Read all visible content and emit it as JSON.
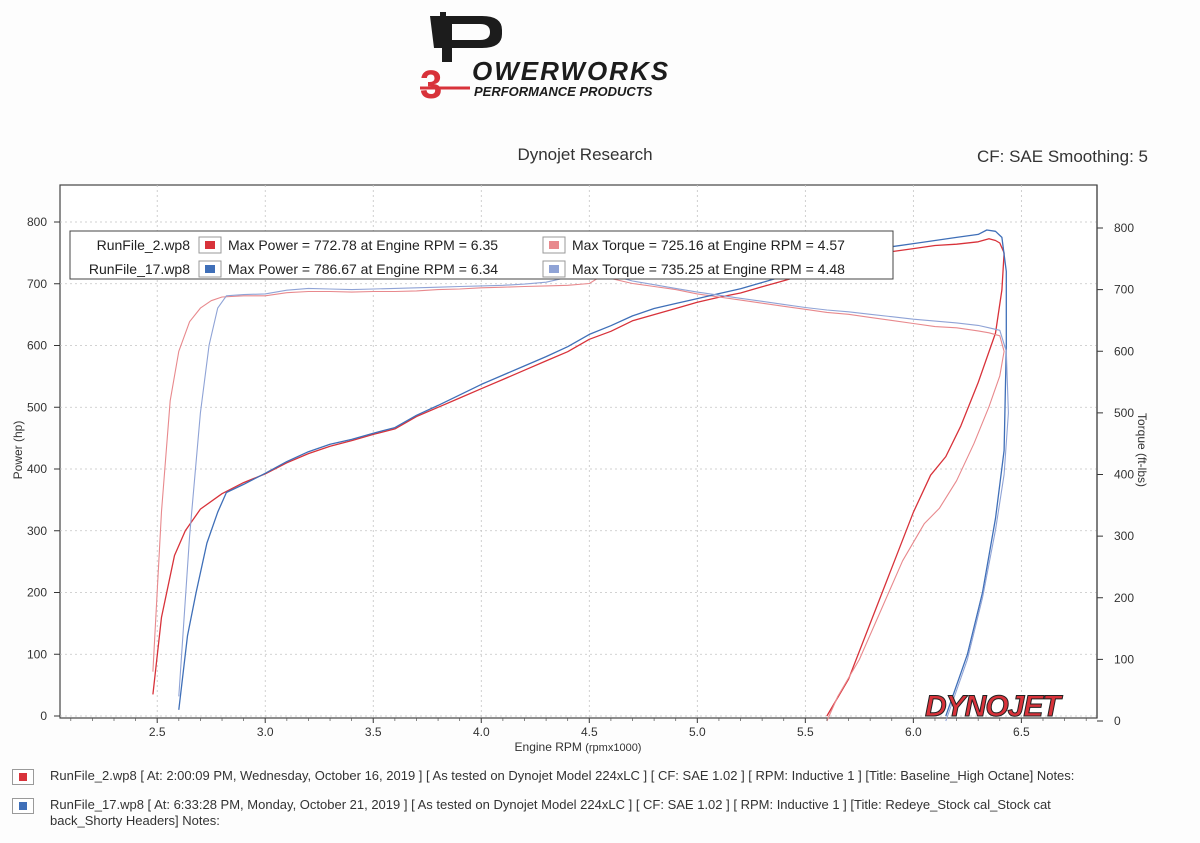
{
  "logo": {
    "brand_word": "OWERWORKS",
    "brand_tagline": "PERFORMANCE PRODUCTS",
    "brand_mark_letter": "P",
    "brand_mark_number": "3",
    "colors": {
      "dark": "#1c1c1c",
      "red": "#d8323a"
    }
  },
  "header": {
    "title": "Dynojet Research",
    "cf_text": "CF: SAE Smoothing: 5"
  },
  "chart_data": {
    "type": "line",
    "xlabel": "Engine RPM",
    "xlabel_unit": "(rpmx1000)",
    "ylabel_left": "Power (hp)",
    "ylabel_right": "Torque (ft-lbs)",
    "xlim": [
      2.05,
      6.85
    ],
    "ylim_left": [
      0,
      800
    ],
    "ylim_right": [
      0,
      800
    ],
    "x_ticks": [
      "2.5",
      "3.0",
      "3.5",
      "4.0",
      "4.5",
      "5.0",
      "5.5",
      "6.0",
      "6.5"
    ],
    "y_ticks_left": [
      "0",
      "100",
      "200",
      "300",
      "400",
      "500",
      "600",
      "700",
      "800"
    ],
    "y_ticks_right": [
      "0",
      "100",
      "200",
      "300",
      "400",
      "500",
      "600",
      "700",
      "800"
    ],
    "grid": true,
    "watermark": "DYNOJET",
    "legend": {
      "placement": "top-left",
      "rows": [
        {
          "file": "RunFile_2.wp8",
          "power_text": "Max Power = 772.78 at Engine RPM = 6.35",
          "torque_text": "Max Torque = 725.16 at Engine RPM = 4.57",
          "power_color": "#d8323a",
          "torque_color": "#e8898d"
        },
        {
          "file": "RunFile_17.wp8",
          "power_text": "Max Power = 786.67 at Engine RPM = 6.34",
          "torque_text": "Max Torque = 735.25 at Engine RPM = 4.48",
          "power_color": "#3f6fb8",
          "torque_color": "#8fa3d6"
        }
      ]
    },
    "series": [
      {
        "name": "RunFile_2.wp8",
        "measure": "power",
        "axis": "left",
        "color": "#d8323a",
        "points": [
          [
            2.48,
            35
          ],
          [
            2.52,
            160
          ],
          [
            2.58,
            260
          ],
          [
            2.63,
            300
          ],
          [
            2.7,
            335
          ],
          [
            2.8,
            360
          ],
          [
            2.9,
            378
          ],
          [
            3.0,
            392
          ],
          [
            3.1,
            410
          ],
          [
            3.2,
            425
          ],
          [
            3.3,
            437
          ],
          [
            3.4,
            446
          ],
          [
            3.5,
            456
          ],
          [
            3.6,
            465
          ],
          [
            3.7,
            485
          ],
          [
            3.8,
            500
          ],
          [
            3.9,
            515
          ],
          [
            4.0,
            530
          ],
          [
            4.1,
            545
          ],
          [
            4.2,
            560
          ],
          [
            4.3,
            575
          ],
          [
            4.4,
            590
          ],
          [
            4.5,
            610
          ],
          [
            4.6,
            623
          ],
          [
            4.7,
            640
          ],
          [
            4.8,
            650
          ],
          [
            4.9,
            660
          ],
          [
            5.0,
            670
          ],
          [
            5.1,
            678
          ],
          [
            5.2,
            685
          ],
          [
            5.3,
            695
          ],
          [
            5.4,
            705
          ],
          [
            5.5,
            715
          ],
          [
            5.6,
            725
          ],
          [
            5.7,
            735
          ],
          [
            5.8,
            745
          ],
          [
            5.9,
            752
          ],
          [
            6.0,
            757
          ],
          [
            6.1,
            762
          ],
          [
            6.2,
            764
          ],
          [
            6.3,
            768
          ],
          [
            6.35,
            773
          ],
          [
            6.38,
            770
          ],
          [
            6.4,
            766
          ],
          [
            6.42,
            750
          ],
          [
            6.41,
            690
          ],
          [
            6.38,
            620
          ],
          [
            6.3,
            540
          ],
          [
            6.22,
            470
          ],
          [
            6.15,
            420
          ],
          [
            6.08,
            390
          ],
          [
            6.0,
            330
          ],
          [
            5.9,
            240
          ],
          [
            5.8,
            150
          ],
          [
            5.7,
            60
          ],
          [
            5.6,
            0
          ]
        ]
      },
      {
        "name": "RunFile_2.wp8",
        "measure": "torque",
        "axis": "right",
        "color": "#e8898d",
        "points": [
          [
            2.48,
            80
          ],
          [
            2.52,
            340
          ],
          [
            2.56,
            520
          ],
          [
            2.6,
            600
          ],
          [
            2.65,
            648
          ],
          [
            2.7,
            670
          ],
          [
            2.75,
            682
          ],
          [
            2.8,
            688
          ],
          [
            2.9,
            690
          ],
          [
            3.0,
            690
          ],
          [
            3.1,
            695
          ],
          [
            3.2,
            697
          ],
          [
            3.3,
            697
          ],
          [
            3.4,
            696
          ],
          [
            3.5,
            697
          ],
          [
            3.6,
            697
          ],
          [
            3.7,
            698
          ],
          [
            3.8,
            700
          ],
          [
            3.9,
            701
          ],
          [
            4.0,
            703
          ],
          [
            4.1,
            704
          ],
          [
            4.2,
            705
          ],
          [
            4.3,
            706
          ],
          [
            4.4,
            707
          ],
          [
            4.5,
            710
          ],
          [
            4.57,
            725
          ],
          [
            4.6,
            718
          ],
          [
            4.7,
            710
          ],
          [
            4.8,
            705
          ],
          [
            4.9,
            700
          ],
          [
            5.0,
            693
          ],
          [
            5.1,
            688
          ],
          [
            5.2,
            683
          ],
          [
            5.3,
            678
          ],
          [
            5.4,
            673
          ],
          [
            5.5,
            668
          ],
          [
            5.6,
            663
          ],
          [
            5.7,
            660
          ],
          [
            5.8,
            655
          ],
          [
            5.9,
            650
          ],
          [
            6.0,
            645
          ],
          [
            6.1,
            640
          ],
          [
            6.2,
            638
          ],
          [
            6.3,
            633
          ],
          [
            6.35,
            630
          ],
          [
            6.4,
            625
          ],
          [
            6.42,
            600
          ],
          [
            6.4,
            560
          ],
          [
            6.35,
            510
          ],
          [
            6.28,
            450
          ],
          [
            6.2,
            390
          ],
          [
            6.12,
            345
          ],
          [
            6.05,
            320
          ],
          [
            5.95,
            260
          ],
          [
            5.85,
            180
          ],
          [
            5.75,
            100
          ],
          [
            5.65,
            40
          ],
          [
            5.6,
            0
          ]
        ]
      },
      {
        "name": "RunFile_17.wp8",
        "measure": "power",
        "axis": "left",
        "color": "#3f6fb8",
        "points": [
          [
            2.6,
            10
          ],
          [
            2.64,
            130
          ],
          [
            2.68,
            200
          ],
          [
            2.73,
            280
          ],
          [
            2.78,
            330
          ],
          [
            2.82,
            362
          ],
          [
            2.9,
            375
          ],
          [
            3.0,
            393
          ],
          [
            3.1,
            412
          ],
          [
            3.2,
            428
          ],
          [
            3.3,
            440
          ],
          [
            3.4,
            448
          ],
          [
            3.5,
            458
          ],
          [
            3.6,
            467
          ],
          [
            3.7,
            487
          ],
          [
            3.8,
            503
          ],
          [
            3.9,
            520
          ],
          [
            4.0,
            537
          ],
          [
            4.1,
            552
          ],
          [
            4.2,
            567
          ],
          [
            4.3,
            582
          ],
          [
            4.4,
            598
          ],
          [
            4.5,
            618
          ],
          [
            4.6,
            632
          ],
          [
            4.7,
            648
          ],
          [
            4.8,
            660
          ],
          [
            4.9,
            668
          ],
          [
            5.0,
            676
          ],
          [
            5.1,
            684
          ],
          [
            5.2,
            692
          ],
          [
            5.3,
            702
          ],
          [
            5.4,
            712
          ],
          [
            5.5,
            722
          ],
          [
            5.6,
            732
          ],
          [
            5.7,
            742
          ],
          [
            5.8,
            752
          ],
          [
            5.9,
            760
          ],
          [
            6.0,
            765
          ],
          [
            6.1,
            770
          ],
          [
            6.2,
            775
          ],
          [
            6.3,
            780
          ],
          [
            6.34,
            787
          ],
          [
            6.38,
            785
          ],
          [
            6.41,
            775
          ],
          [
            6.43,
            720
          ],
          [
            6.43,
            600
          ],
          [
            6.42,
            430
          ],
          [
            6.38,
            320
          ],
          [
            6.32,
            200
          ],
          [
            6.25,
            100
          ],
          [
            6.18,
            30
          ],
          [
            6.15,
            0
          ]
        ]
      },
      {
        "name": "RunFile_17.wp8",
        "measure": "torque",
        "axis": "right",
        "color": "#8fa3d6",
        "points": [
          [
            2.6,
            40
          ],
          [
            2.65,
            300
          ],
          [
            2.7,
            500
          ],
          [
            2.74,
            610
          ],
          [
            2.78,
            670
          ],
          [
            2.82,
            690
          ],
          [
            2.9,
            692
          ],
          [
            3.0,
            693
          ],
          [
            3.1,
            699
          ],
          [
            3.2,
            702
          ],
          [
            3.3,
            701
          ],
          [
            3.4,
            700
          ],
          [
            3.5,
            701
          ],
          [
            3.6,
            702
          ],
          [
            3.7,
            703
          ],
          [
            3.8,
            704
          ],
          [
            3.9,
            705
          ],
          [
            4.0,
            706
          ],
          [
            4.1,
            707
          ],
          [
            4.2,
            709
          ],
          [
            4.3,
            712
          ],
          [
            4.4,
            720
          ],
          [
            4.48,
            735
          ],
          [
            4.55,
            728
          ],
          [
            4.7,
            714
          ],
          [
            4.8,
            708
          ],
          [
            4.9,
            702
          ],
          [
            5.0,
            696
          ],
          [
            5.1,
            691
          ],
          [
            5.2,
            686
          ],
          [
            5.3,
            681
          ],
          [
            5.4,
            676
          ],
          [
            5.5,
            671
          ],
          [
            5.6,
            667
          ],
          [
            5.7,
            664
          ],
          [
            5.8,
            660
          ],
          [
            5.9,
            656
          ],
          [
            6.0,
            652
          ],
          [
            6.1,
            649
          ],
          [
            6.2,
            646
          ],
          [
            6.3,
            642
          ],
          [
            6.35,
            638
          ],
          [
            6.4,
            634
          ],
          [
            6.43,
            600
          ],
          [
            6.44,
            500
          ],
          [
            6.42,
            400
          ],
          [
            6.38,
            310
          ],
          [
            6.32,
            200
          ],
          [
            6.25,
            100
          ],
          [
            6.18,
            30
          ],
          [
            6.15,
            0
          ]
        ]
      }
    ]
  },
  "footnotes": [
    {
      "color": "#d8323a",
      "text": "RunFile_2.wp8 [ At: 2:00:09 PM, Wednesday, October 16, 2019 ] [ As tested on Dynojet Model 224xLC ] [ CF: SAE 1.02 ] [ RPM: Inductive 1 ] [Title: Baseline_High Octane]  Notes:"
    },
    {
      "color": "#3f6fb8",
      "text": "RunFile_17.wp8 [ At: 6:33:28 PM, Monday, October 21, 2019 ] [ As tested on Dynojet Model 224xLC ] [ CF: SAE 1.02 ] [ RPM: Inductive 1 ] [Title: Redeye_Stock cal_Stock cat back_Shorty Headers]  Notes:"
    }
  ]
}
